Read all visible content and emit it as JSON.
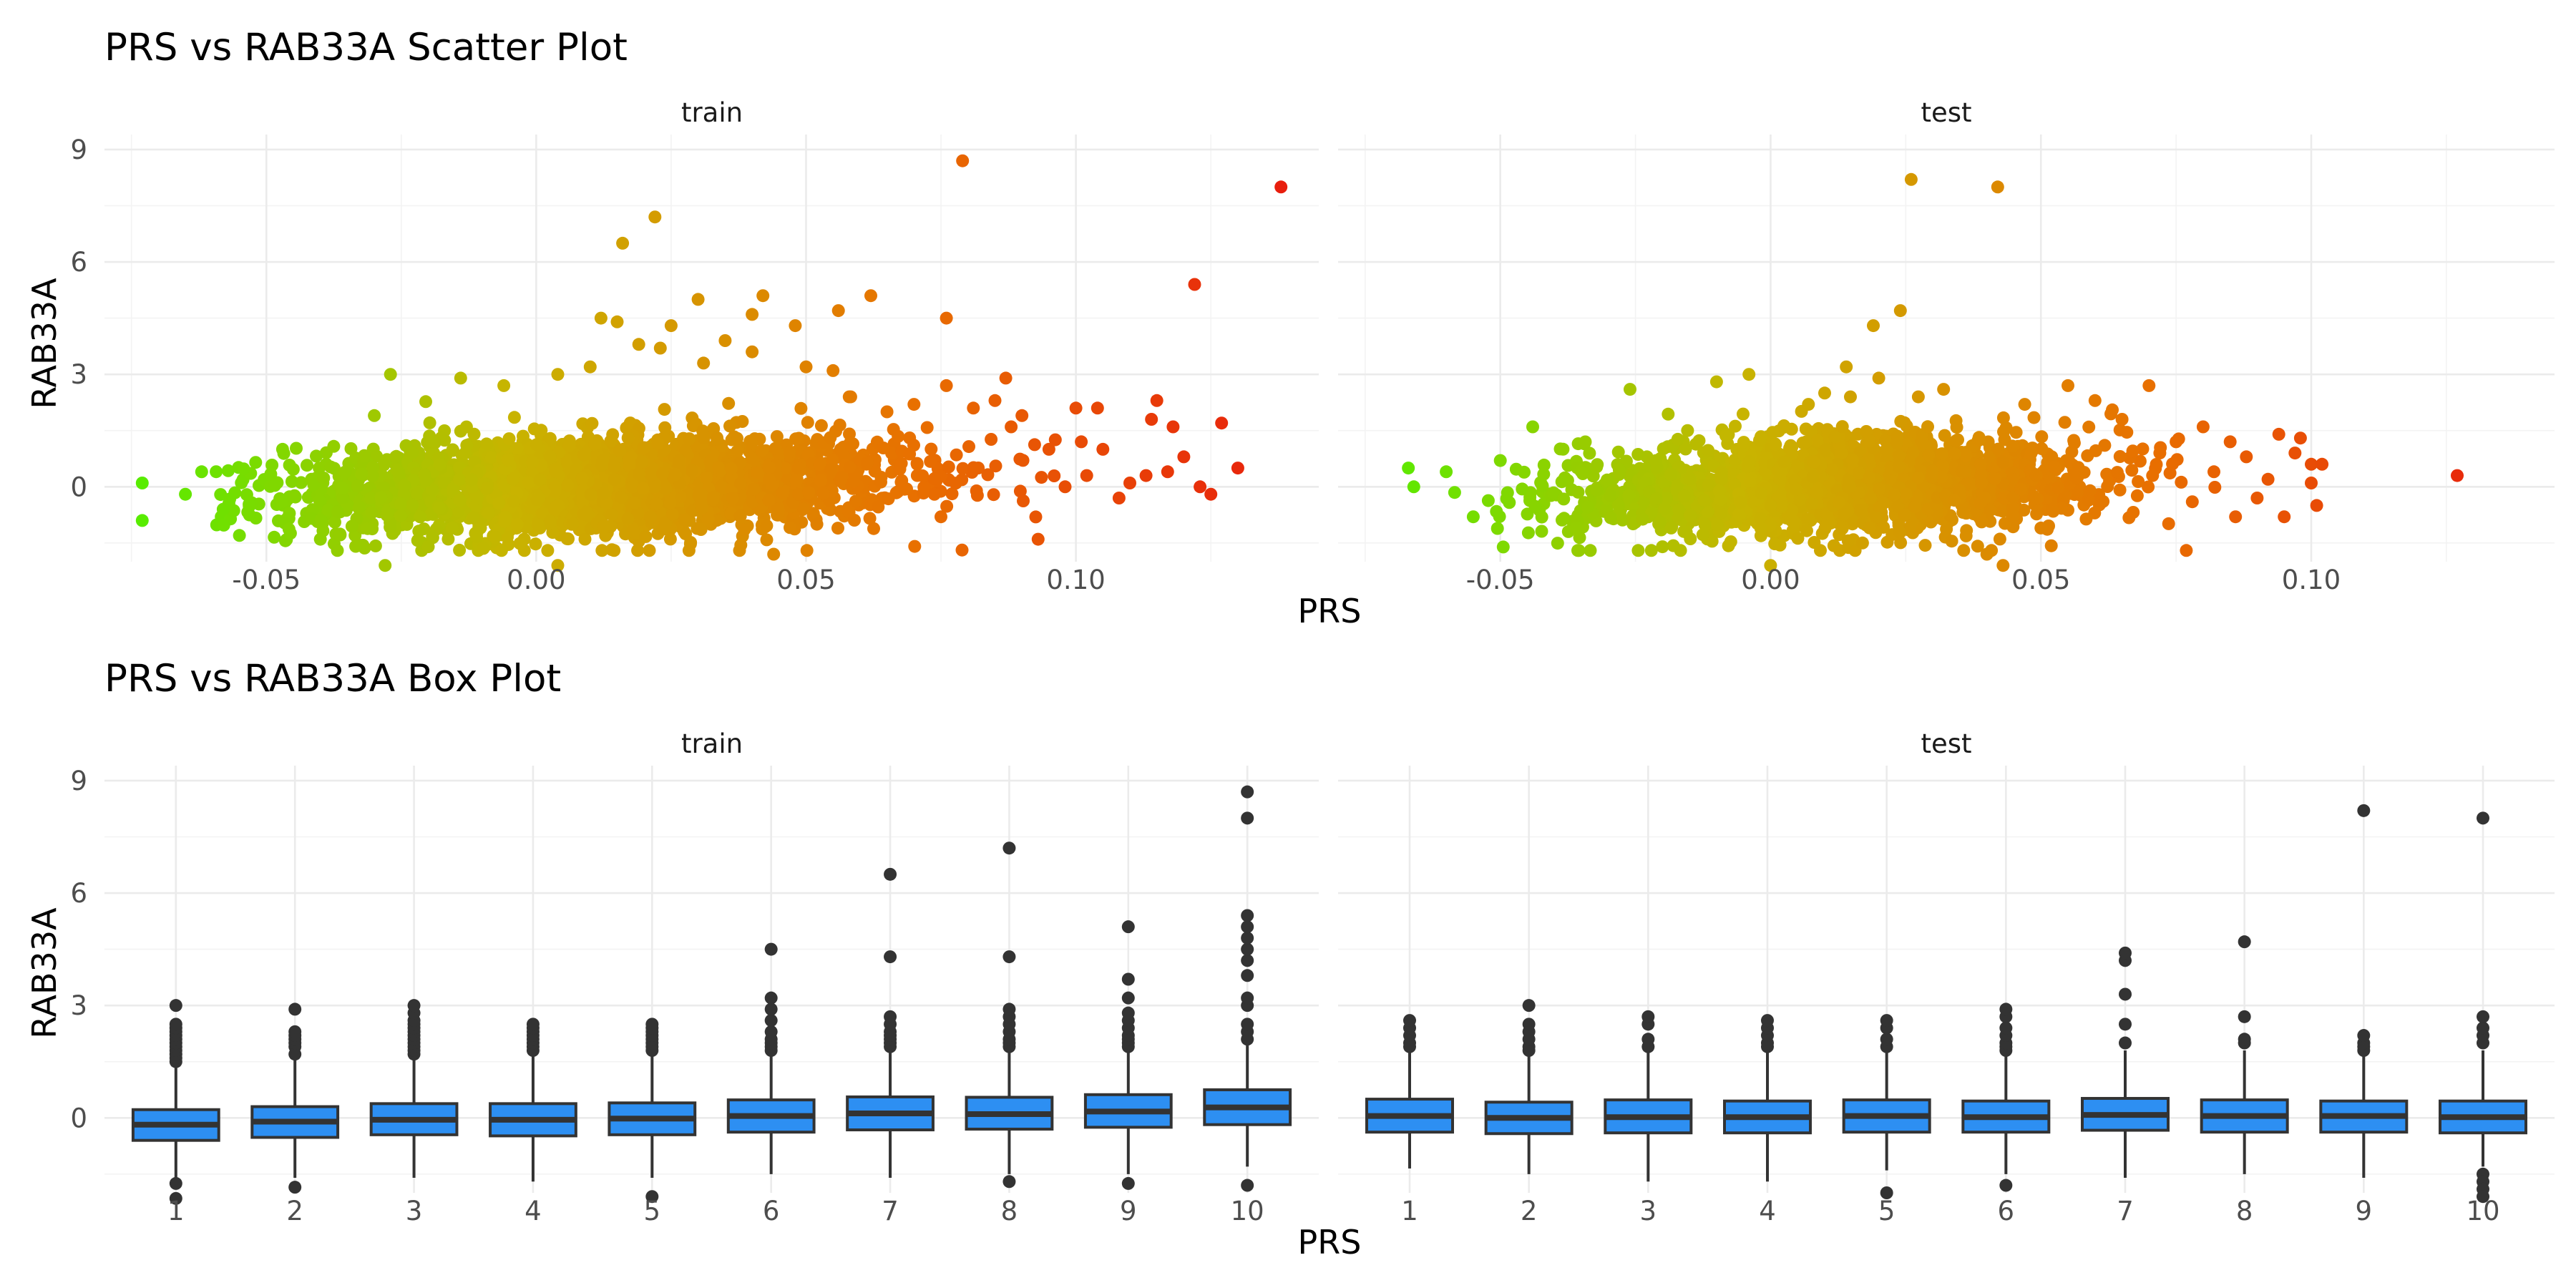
{
  "chart_data": [
    {
      "type": "scatter",
      "title": "PRS vs RAB33A Scatter Plot",
      "xlabel": "PRS",
      "ylabel": "RAB33A",
      "facets": [
        "train",
        "test"
      ],
      "xlim": [
        -0.08,
        0.145
      ],
      "ylim": [
        -2.0,
        9.4
      ],
      "xticks": [
        -0.05,
        0.0,
        0.05,
        0.1
      ],
      "xtick_labels": [
        "-0.05",
        "0.00",
        "0.05",
        "0.10"
      ],
      "yticks": [
        0,
        3,
        6,
        9
      ],
      "ytick_labels": [
        "0",
        "3",
        "6",
        "9"
      ],
      "grid": true,
      "color_gradient": [
        "#4cf200",
        "#c8b400",
        "#e87000",
        "#e8160e"
      ],
      "series": [
        {
          "facet": "train",
          "points": [
            [
              -0.073,
              0.1
            ],
            [
              -0.073,
              -0.9
            ],
            [
              -0.065,
              -0.2
            ],
            [
              -0.062,
              0.4
            ],
            [
              -0.058,
              -0.6
            ],
            [
              -0.055,
              -1.3
            ],
            [
              -0.047,
              1.0
            ],
            [
              -0.04,
              -1.4
            ],
            [
              -0.03,
              1.9
            ],
            [
              -0.028,
              -2.1
            ],
            [
              -0.027,
              3.0
            ],
            [
              -0.02,
              -1.6
            ],
            [
              -0.014,
              2.9
            ],
            [
              -0.006,
              2.7
            ],
            [
              0.004,
              3.0
            ],
            [
              0.004,
              -2.1
            ],
            [
              0.01,
              3.2
            ],
            [
              0.012,
              4.5
            ],
            [
              0.015,
              4.4
            ],
            [
              0.016,
              6.5
            ],
            [
              0.019,
              3.8
            ],
            [
              0.022,
              7.2
            ],
            [
              0.023,
              3.7
            ],
            [
              0.025,
              4.3
            ],
            [
              0.03,
              5.0
            ],
            [
              0.031,
              3.3
            ],
            [
              0.035,
              3.9
            ],
            [
              0.04,
              3.6
            ],
            [
              0.04,
              4.6
            ],
            [
              0.042,
              5.1
            ],
            [
              0.044,
              -1.8
            ],
            [
              0.048,
              4.3
            ],
            [
              0.05,
              3.2
            ],
            [
              0.052,
              -1.0
            ],
            [
              0.055,
              3.1
            ],
            [
              0.056,
              4.7
            ],
            [
              0.058,
              2.4
            ],
            [
              0.062,
              5.1
            ],
            [
              0.065,
              2.0
            ],
            [
              0.07,
              2.2
            ],
            [
              0.075,
              -0.8
            ],
            [
              0.076,
              4.5
            ],
            [
              0.076,
              2.7
            ],
            [
              0.079,
              8.7
            ],
            [
              0.081,
              2.1
            ],
            [
              0.085,
              2.3
            ],
            [
              0.087,
              2.9
            ],
            [
              0.088,
              1.6
            ],
            [
              0.09,
              1.9
            ],
            [
              0.093,
              -1.4
            ],
            [
              0.095,
              1.0
            ],
            [
              0.098,
              0.0
            ],
            [
              0.1,
              2.1
            ],
            [
              0.101,
              1.2
            ],
            [
              0.102,
              0.3
            ],
            [
              0.104,
              2.1
            ],
            [
              0.105,
              1.0
            ],
            [
              0.108,
              -0.3
            ],
            [
              0.11,
              0.1
            ],
            [
              0.113,
              0.3
            ],
            [
              0.114,
              1.8
            ],
            [
              0.115,
              2.3
            ],
            [
              0.117,
              0.4
            ],
            [
              0.118,
              1.6
            ],
            [
              0.12,
              0.8
            ],
            [
              0.122,
              5.4
            ],
            [
              0.123,
              0.0
            ],
            [
              0.125,
              -0.2
            ],
            [
              0.127,
              1.7
            ],
            [
              0.13,
              0.5
            ],
            [
              0.138,
              8.0
            ]
          ]
        },
        {
          "facet": "test",
          "points": [
            [
              -0.067,
              0.5
            ],
            [
              -0.066,
              0.0
            ],
            [
              -0.06,
              0.4
            ],
            [
              -0.055,
              -0.8
            ],
            [
              -0.05,
              0.7
            ],
            [
              -0.044,
              1.6
            ],
            [
              -0.036,
              -1.1
            ],
            [
              -0.026,
              2.6
            ],
            [
              -0.02,
              -1.6
            ],
            [
              -0.01,
              2.8
            ],
            [
              -0.004,
              3.0
            ],
            [
              0.0,
              -2.1
            ],
            [
              0.007,
              2.2
            ],
            [
              0.01,
              2.5
            ],
            [
              0.014,
              3.2
            ],
            [
              0.017,
              -1.5
            ],
            [
              0.019,
              4.3
            ],
            [
              0.02,
              2.9
            ],
            [
              0.024,
              4.7
            ],
            [
              0.026,
              8.2
            ],
            [
              0.032,
              2.6
            ],
            [
              0.04,
              -1.8
            ],
            [
              0.042,
              8.0
            ],
            [
              0.043,
              -2.1
            ],
            [
              0.047,
              2.2
            ],
            [
              0.05,
              -1.1
            ],
            [
              0.055,
              2.7
            ],
            [
              0.06,
              2.3
            ],
            [
              0.065,
              1.8
            ],
            [
              0.07,
              2.7
            ],
            [
              0.072,
              0.9
            ],
            [
              0.075,
              1.2
            ],
            [
              0.078,
              -0.4
            ],
            [
              0.08,
              1.6
            ],
            [
              0.082,
              0.4
            ],
            [
              0.085,
              1.2
            ],
            [
              0.086,
              -0.8
            ],
            [
              0.088,
              0.8
            ],
            [
              0.09,
              -0.3
            ],
            [
              0.092,
              0.2
            ],
            [
              0.094,
              1.4
            ],
            [
              0.095,
              -0.8
            ],
            [
              0.097,
              0.9
            ],
            [
              0.098,
              1.3
            ],
            [
              0.1,
              0.6
            ],
            [
              0.1,
              0.1
            ],
            [
              0.101,
              -0.5
            ],
            [
              0.102,
              0.6
            ],
            [
              0.127,
              0.3
            ]
          ]
        }
      ]
    },
    {
      "type": "box",
      "title": "PRS vs RAB33A Box Plot",
      "xlabel": "PRS",
      "ylabel": "RAB33A",
      "facets": [
        "train",
        "test"
      ],
      "categories": [
        "1",
        "2",
        "3",
        "4",
        "5",
        "6",
        "7",
        "8",
        "9",
        "10"
      ],
      "ylim": [
        -2.0,
        9.4
      ],
      "yticks": [
        0,
        3,
        6,
        9
      ],
      "ytick_labels": [
        "0",
        "3",
        "6",
        "9"
      ],
      "grid": true,
      "box_color": "#2d8ff2",
      "outline_color": "#333333",
      "series": [
        {
          "facet": "train",
          "boxes": [
            {
              "q1": -0.6,
              "median": -0.18,
              "q3": 0.22,
              "low": -1.7,
              "high": 1.4,
              "outliers": [
                1.5,
                1.6,
                1.7,
                1.8,
                1.9,
                2.0,
                2.1,
                2.2,
                2.3,
                2.4,
                2.5,
                3.0,
                -1.75,
                -2.15
              ]
            },
            {
              "q1": -0.52,
              "median": -0.1,
              "q3": 0.3,
              "low": -1.6,
              "high": 1.6,
              "outliers": [
                1.7,
                1.9,
                2.0,
                2.1,
                2.2,
                2.3,
                2.9,
                -1.85
              ]
            },
            {
              "q1": -0.45,
              "median": -0.05,
              "q3": 0.38,
              "low": -1.6,
              "high": 1.6,
              "outliers": [
                1.7,
                1.8,
                1.9,
                2.0,
                2.1,
                2.2,
                2.3,
                2.4,
                2.5,
                2.6,
                2.8,
                3.0
              ]
            },
            {
              "q1": -0.48,
              "median": -0.05,
              "q3": 0.38,
              "low": -1.7,
              "high": 1.7,
              "outliers": [
                1.8,
                1.9,
                2.0,
                2.1,
                2.2,
                2.3,
                2.4,
                2.5
              ]
            },
            {
              "q1": -0.45,
              "median": -0.02,
              "q3": 0.4,
              "low": -1.6,
              "high": 1.7,
              "outliers": [
                1.8,
                1.9,
                2.0,
                2.1,
                2.2,
                2.3,
                2.4,
                2.5,
                -2.1
              ]
            },
            {
              "q1": -0.38,
              "median": 0.05,
              "q3": 0.48,
              "low": -1.5,
              "high": 1.7,
              "outliers": [
                1.8,
                1.9,
                2.0,
                2.1,
                2.3,
                2.6,
                2.9,
                3.2,
                4.5
              ]
            },
            {
              "q1": -0.32,
              "median": 0.12,
              "q3": 0.56,
              "low": -1.6,
              "high": 1.8,
              "outliers": [
                1.9,
                2.0,
                2.1,
                2.2,
                2.3,
                2.5,
                2.7,
                4.3,
                6.5
              ]
            },
            {
              "q1": -0.3,
              "median": 0.1,
              "q3": 0.55,
              "low": -1.5,
              "high": 1.8,
              "outliers": [
                1.9,
                2.0,
                2.1,
                2.3,
                2.5,
                2.7,
                2.9,
                4.3,
                7.2,
                -1.7
              ]
            },
            {
              "q1": -0.25,
              "median": 0.17,
              "q3": 0.62,
              "low": -1.5,
              "high": 1.8,
              "outliers": [
                1.9,
                2.0,
                2.1,
                2.2,
                2.4,
                2.6,
                2.8,
                3.2,
                3.7,
                5.1,
                -1.75
              ]
            },
            {
              "q1": -0.18,
              "median": 0.28,
              "q3": 0.75,
              "low": -1.3,
              "high": 2.0,
              "outliers": [
                2.1,
                2.3,
                2.5,
                3.0,
                3.2,
                3.8,
                4.2,
                4.5,
                4.8,
                5.1,
                5.4,
                8.0,
                8.7,
                -1.8
              ]
            }
          ]
        },
        {
          "facet": "test",
          "boxes": [
            {
              "q1": -0.38,
              "median": 0.05,
              "q3": 0.5,
              "low": -1.35,
              "high": 1.8,
              "outliers": [
                1.9,
                2.0,
                2.2,
                2.4,
                2.6
              ]
            },
            {
              "q1": -0.42,
              "median": 0.0,
              "q3": 0.42,
              "low": -1.5,
              "high": 1.7,
              "outliers": [
                1.8,
                1.9,
                2.1,
                2.3,
                2.5,
                3.0
              ]
            },
            {
              "q1": -0.4,
              "median": 0.02,
              "q3": 0.48,
              "low": -1.7,
              "high": 1.8,
              "outliers": [
                1.9,
                2.1,
                2.5,
                2.7
              ]
            },
            {
              "q1": -0.4,
              "median": 0.02,
              "q3": 0.45,
              "low": -1.7,
              "high": 1.8,
              "outliers": [
                1.9,
                2.0,
                2.2,
                2.4,
                2.6
              ]
            },
            {
              "q1": -0.38,
              "median": 0.05,
              "q3": 0.48,
              "low": -1.4,
              "high": 1.8,
              "outliers": [
                1.9,
                2.1,
                2.4,
                2.6,
                -2.0
              ]
            },
            {
              "q1": -0.38,
              "median": 0.02,
              "q3": 0.45,
              "low": -1.5,
              "high": 1.7,
              "outliers": [
                1.8,
                1.9,
                2.0,
                2.2,
                2.4,
                2.7,
                2.9,
                -1.8
              ]
            },
            {
              "q1": -0.33,
              "median": 0.08,
              "q3": 0.52,
              "low": -1.6,
              "high": 1.8,
              "outliers": [
                2.0,
                2.5,
                3.3,
                4.2,
                4.4
              ]
            },
            {
              "q1": -0.38,
              "median": 0.05,
              "q3": 0.48,
              "low": -1.5,
              "high": 1.8,
              "outliers": [
                2.0,
                2.1,
                2.7,
                4.7
              ]
            },
            {
              "q1": -0.38,
              "median": 0.05,
              "q3": 0.45,
              "low": -1.6,
              "high": 1.7,
              "outliers": [
                1.8,
                1.9,
                2.0,
                2.2,
                8.2
              ]
            },
            {
              "q1": -0.4,
              "median": 0.02,
              "q3": 0.45,
              "low": -1.3,
              "high": 1.8,
              "outliers": [
                2.0,
                2.2,
                2.4,
                2.7,
                -1.5,
                -1.7,
                -1.9,
                -2.1,
                8.0
              ]
            }
          ]
        }
      ]
    }
  ]
}
